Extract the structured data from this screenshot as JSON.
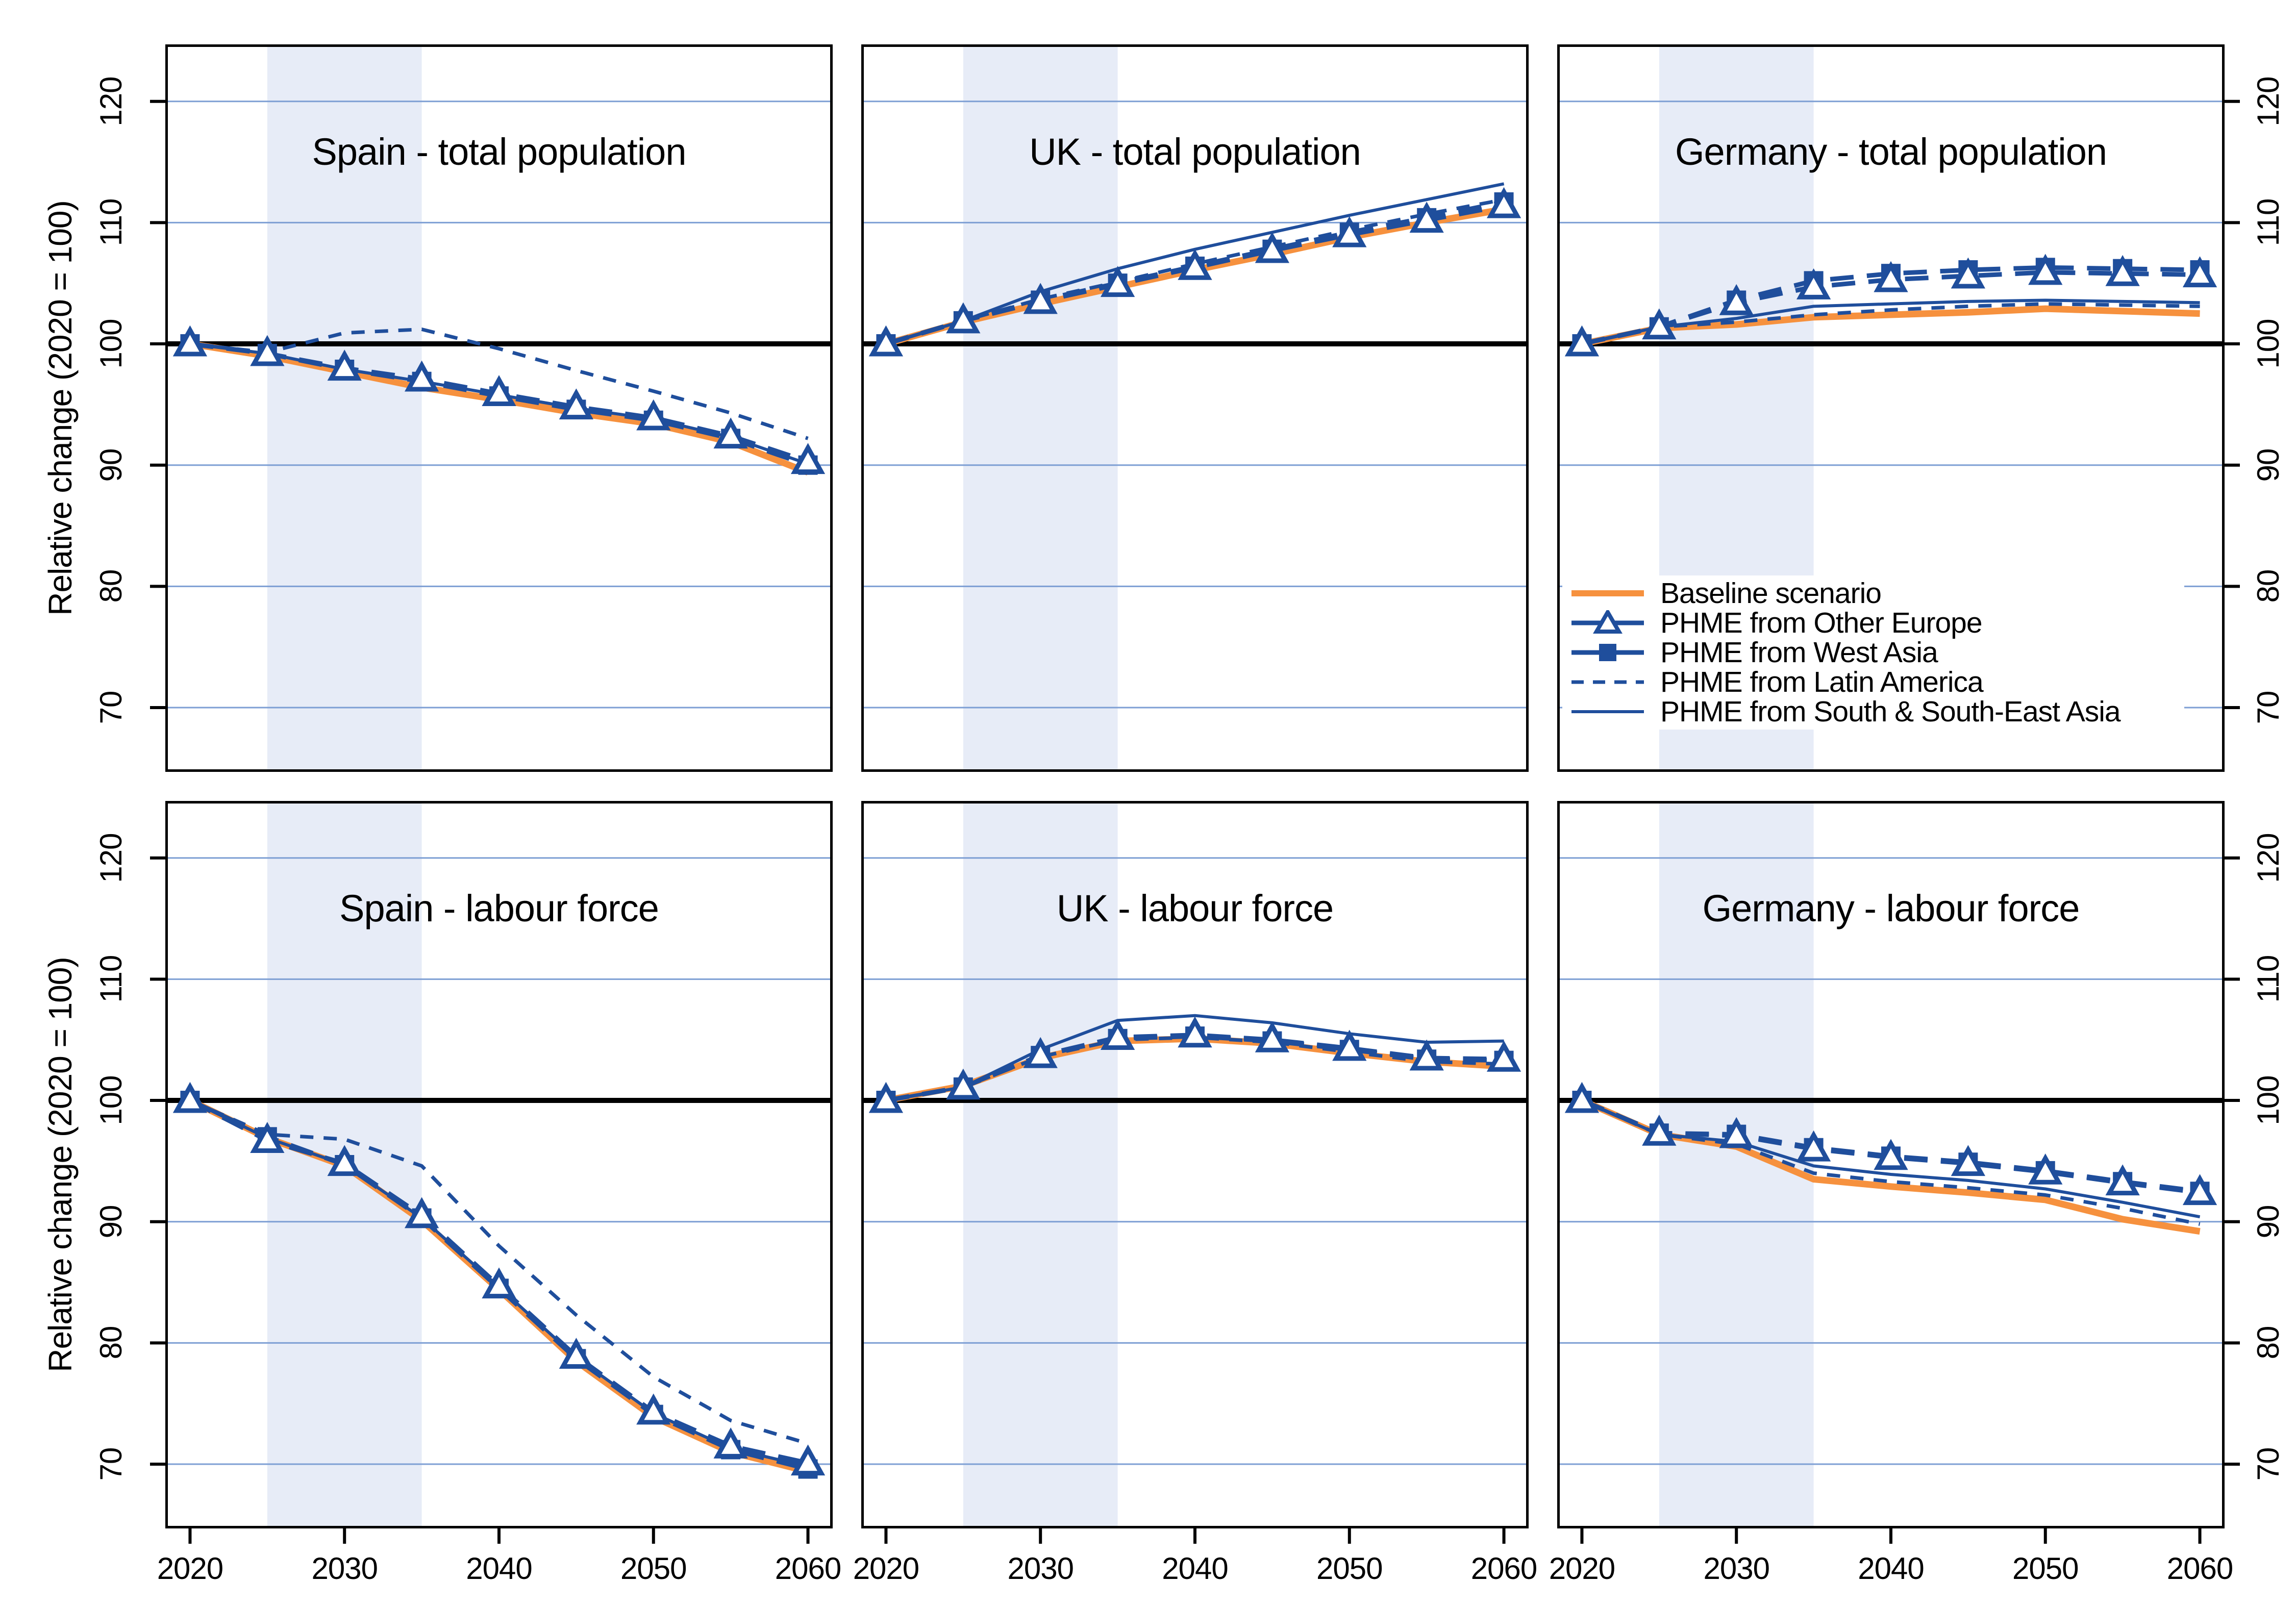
{
  "figure": {
    "y_axis_label": "Relative change (2020 = 100)"
  },
  "colors": {
    "baseline_orange": "#F6913E",
    "phme_blue": "#1F4E9C",
    "gridline_blue": "#7E9FD4",
    "shaded_band": "#E7ECF7",
    "reference_line": "#000000"
  },
  "legend": {
    "items": [
      {
        "id": "baseline",
        "label": "Baseline scenario"
      },
      {
        "id": "other_europe",
        "label": "PHME from Other Europe"
      },
      {
        "id": "west_asia",
        "label": "PHME from West Asia"
      },
      {
        "id": "latin_america",
        "label": "PHME from Latin America"
      },
      {
        "id": "south_se_asia",
        "label": "PHME from South & South-East Asia"
      }
    ]
  },
  "axes": {
    "x_ticks": [
      2020,
      2030,
      2040,
      2050,
      2060
    ],
    "y_ticks": [
      70,
      80,
      90,
      100,
      110,
      120
    ],
    "x_range": [
      2018.4,
      2061.6
    ],
    "y_range": [
      64.7,
      124.7
    ],
    "shaded_band_years": [
      2025,
      2035
    ],
    "reference_value": 100
  },
  "chart_data": [
    {
      "type": "line",
      "title": "Spain - total population",
      "x": [
        2020,
        2025,
        2030,
        2035,
        2040,
        2045,
        2050,
        2055,
        2060
      ],
      "series": [
        {
          "id": "baseline",
          "name": "Baseline scenario",
          "values": [
            100,
            99.0,
            97.7,
            96.4,
            95.4,
            94.3,
            93.4,
            91.9,
            89.4
          ]
        },
        {
          "id": "other_europe",
          "name": "PHME from Other Europe",
          "values": [
            100,
            99.2,
            98.0,
            97.1,
            95.9,
            94.8,
            93.9,
            92.4,
            90.3
          ]
        },
        {
          "id": "west_asia",
          "name": "PHME from West Asia",
          "values": [
            100,
            99.2,
            97.9,
            96.9,
            95.7,
            94.6,
            93.7,
            92.2,
            90.0
          ]
        },
        {
          "id": "latin_america",
          "name": "PHME from Latin America",
          "values": [
            100,
            99.3,
            100.9,
            101.2,
            99.6,
            97.8,
            96.1,
            94.3,
            92.2
          ]
        },
        {
          "id": "south_se_asia",
          "name": "PHME from South & South-East Asia",
          "values": [
            100,
            99.2,
            97.9,
            96.9,
            95.8,
            94.7,
            93.8,
            92.3,
            90.1
          ]
        }
      ]
    },
    {
      "type": "line",
      "title": "UK - total population",
      "x": [
        2020,
        2025,
        2030,
        2035,
        2040,
        2045,
        2050,
        2055,
        2060
      ],
      "series": [
        {
          "id": "baseline",
          "name": "Baseline scenario",
          "values": [
            100,
            101.8,
            103.3,
            104.7,
            106.1,
            107.4,
            108.8,
            110.0,
            111.1
          ]
        },
        {
          "id": "other_europe",
          "name": "PHME from Other Europe",
          "values": [
            100,
            101.9,
            103.5,
            104.9,
            106.3,
            107.7,
            109.0,
            110.2,
            111.4
          ]
        },
        {
          "id": "west_asia",
          "name": "PHME from West Asia",
          "values": [
            100,
            101.9,
            103.6,
            105.0,
            106.4,
            107.8,
            109.2,
            110.4,
            111.7
          ]
        },
        {
          "id": "latin_america",
          "name": "PHME from Latin America",
          "values": [
            100,
            101.9,
            103.7,
            105.1,
            106.6,
            108.0,
            109.4,
            110.7,
            111.9
          ]
        },
        {
          "id": "south_se_asia",
          "name": "PHME from South & South-East Asia",
          "values": [
            100,
            101.9,
            104.3,
            106.2,
            107.8,
            109.2,
            110.6,
            111.9,
            113.2
          ]
        }
      ]
    },
    {
      "type": "line",
      "title": "Germany - total population",
      "x": [
        2020,
        2025,
        2030,
        2035,
        2040,
        2045,
        2050,
        2055,
        2060
      ],
      "series": [
        {
          "id": "baseline",
          "name": "Baseline scenario",
          "values": [
            100,
            101.3,
            101.6,
            102.2,
            102.4,
            102.6,
            102.9,
            102.7,
            102.5
          ]
        },
        {
          "id": "other_europe",
          "name": "PHME from Other Europe",
          "values": [
            100,
            101.4,
            103.4,
            104.7,
            105.3,
            105.6,
            105.9,
            105.8,
            105.7
          ]
        },
        {
          "id": "west_asia",
          "name": "PHME from West Asia",
          "values": [
            100,
            101.4,
            103.6,
            105.2,
            105.8,
            106.1,
            106.3,
            106.2,
            106.1
          ]
        },
        {
          "id": "latin_america",
          "name": "PHME from Latin America",
          "values": [
            100,
            101.4,
            101.8,
            102.4,
            102.8,
            103.1,
            103.3,
            103.2,
            103.1
          ]
        },
        {
          "id": "south_se_asia",
          "name": "PHME from South & South-East Asia",
          "values": [
            100,
            101.4,
            102.1,
            103.1,
            103.3,
            103.5,
            103.6,
            103.5,
            103.4
          ]
        }
      ]
    },
    {
      "type": "line",
      "title": "Spain - labour force",
      "x": [
        2020,
        2025,
        2030,
        2035,
        2040,
        2045,
        2050,
        2055,
        2060
      ],
      "series": [
        {
          "id": "baseline",
          "name": "Baseline scenario",
          "values": [
            100,
            96.9,
            94.6,
            90.1,
            84.4,
            78.5,
            73.9,
            71.0,
            69.4
          ]
        },
        {
          "id": "other_europe",
          "name": "PHME from Other Europe",
          "values": [
            100,
            96.7,
            94.8,
            90.5,
            84.7,
            78.9,
            74.3,
            71.5,
            70.1
          ]
        },
        {
          "id": "west_asia",
          "name": "PHME from West Asia",
          "values": [
            100,
            97.0,
            94.7,
            90.3,
            84.5,
            78.7,
            74.1,
            71.2,
            69.6
          ]
        },
        {
          "id": "latin_america",
          "name": "PHME from Latin America",
          "values": [
            100,
            97.2,
            96.8,
            94.6,
            88.0,
            82.3,
            77.2,
            73.6,
            71.7
          ]
        },
        {
          "id": "south_se_asia",
          "name": "PHME from South & South-East Asia",
          "values": [
            100,
            96.9,
            94.7,
            90.3,
            84.6,
            78.8,
            74.2,
            71.3,
            69.8
          ]
        }
      ]
    },
    {
      "type": "line",
      "title": "UK - labour force",
      "x": [
        2020,
        2025,
        2030,
        2035,
        2040,
        2045,
        2050,
        2055,
        2060
      ],
      "series": [
        {
          "id": "baseline",
          "name": "Baseline scenario",
          "values": [
            100,
            101.2,
            103.5,
            104.9,
            105.1,
            104.7,
            103.9,
            103.2,
            102.8
          ]
        },
        {
          "id": "other_europe",
          "name": "PHME from Other Europe",
          "values": [
            100,
            101.1,
            103.7,
            105.2,
            105.4,
            105.0,
            104.3,
            103.5,
            103.4
          ]
        },
        {
          "id": "west_asia",
          "name": "PHME from West Asia",
          "values": [
            100,
            101.1,
            103.7,
            105.1,
            105.3,
            104.9,
            104.2,
            103.4,
            103.3
          ]
        },
        {
          "id": "latin_america",
          "name": "PHME from Latin America",
          "values": [
            100,
            101.1,
            103.6,
            105.0,
            105.2,
            104.8,
            104.0,
            103.2,
            103.0
          ]
        },
        {
          "id": "south_se_asia",
          "name": "PHME from South & South-East Asia",
          "values": [
            100,
            101.1,
            104.2,
            106.6,
            107.0,
            106.4,
            105.5,
            104.8,
            104.9
          ]
        }
      ]
    },
    {
      "type": "line",
      "title": "Germany - labour force",
      "x": [
        2020,
        2025,
        2030,
        2035,
        2040,
        2045,
        2050,
        2055,
        2060
      ],
      "series": [
        {
          "id": "baseline",
          "name": "Baseline scenario",
          "values": [
            100,
            97.2,
            96.2,
            93.5,
            92.9,
            92.4,
            91.8,
            90.2,
            89.2
          ]
        },
        {
          "id": "other_europe",
          "name": "PHME from Other Europe",
          "values": [
            100,
            97.3,
            97.1,
            96.0,
            95.3,
            94.8,
            94.1,
            93.2,
            92.4
          ]
        },
        {
          "id": "west_asia",
          "name": "PHME from West Asia",
          "values": [
            100,
            97.3,
            97.2,
            96.1,
            95.4,
            94.9,
            94.2,
            93.3,
            92.5
          ]
        },
        {
          "id": "latin_america",
          "name": "PHME from Latin America",
          "values": [
            100,
            97.2,
            96.4,
            94.0,
            93.3,
            92.8,
            92.2,
            91.1,
            89.8
          ]
        },
        {
          "id": "south_se_asia",
          "name": "PHME from South & South-East Asia",
          "values": [
            100,
            97.2,
            96.6,
            94.6,
            93.9,
            93.4,
            92.7,
            91.6,
            90.4
          ]
        }
      ]
    }
  ]
}
